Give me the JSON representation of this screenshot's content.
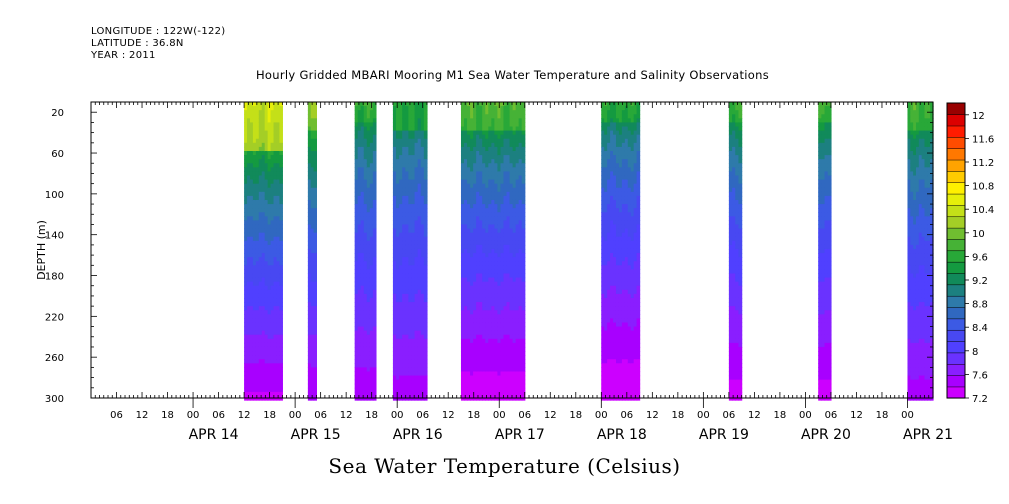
{
  "header": {
    "longitude": "LONGITUDE : 122W(-122)",
    "latitude": "LATITUDE : 36.8N",
    "year": "YEAR : 2011"
  },
  "chart_data": {
    "type": "heatmap",
    "title": "Hourly Gridded MBARI Mooring M1 Sea Water Temperature and Salinity Observations",
    "xlabel": "Sea Water Temperature (Celsius)",
    "ylabel": "DEPTH (m)",
    "ylim": [
      300,
      0
    ],
    "yticks": [
      20,
      60,
      100,
      140,
      180,
      220,
      260,
      300
    ],
    "x_start": "2011-04-13 00:00",
    "x_end": "2011-04-21 06:00",
    "hour_ticks": [
      "06",
      "12",
      "18",
      "00",
      "06",
      "12",
      "18",
      "00",
      "06",
      "12",
      "18",
      "00",
      "06",
      "12",
      "18",
      "00",
      "06",
      "12",
      "18",
      "00",
      "06",
      "12",
      "18",
      "00",
      "06",
      "12",
      "18",
      "00",
      "06",
      "12",
      "18",
      "00"
    ],
    "days": [
      "APR 14",
      "APR 15",
      "APR 16",
      "APR 17",
      "APR 18",
      "APR 19",
      "APR 20",
      "APR 21"
    ],
    "colorbar": {
      "levels": [
        7.2,
        7.4,
        7.6,
        7.8,
        8.0,
        8.2,
        8.4,
        8.6,
        8.8,
        9.0,
        9.2,
        9.4,
        9.6,
        9.8,
        10.0,
        10.2,
        10.4,
        10.6,
        10.8,
        11.0,
        11.2,
        11.4,
        11.6,
        11.8,
        12.0,
        12.2
      ],
      "labels": [
        "7.2",
        "7.6",
        "8",
        "8.4",
        "8.8",
        "9.2",
        "9.6",
        "10",
        "10.4",
        "10.8",
        "11.2",
        "11.6",
        "12"
      ],
      "colors": [
        "#cc00ff",
        "#a800ff",
        "#8a1eff",
        "#6a32ff",
        "#5040ff",
        "#4848f2",
        "#3c5ae4",
        "#3068c0",
        "#2e7aaa",
        "#1c8080",
        "#118a5a",
        "#149a40",
        "#28a838",
        "#46b236",
        "#70be30",
        "#a4ce26",
        "#c4e018",
        "#e6ef0a",
        "#fff000",
        "#ffcc00",
        "#ffa300",
        "#ff7800",
        "#ff4c00",
        "#ff1c00",
        "#dc0000",
        "#990000"
      ]
    },
    "segments": [
      {
        "start": "2011-04-14 12:00",
        "end": "2011-04-14 21:00",
        "surface_temp": 10.5,
        "top_mix_depth": 60,
        "max_warm_depth": 180,
        "bottom_temp": 7.35
      },
      {
        "start": "2011-04-15 03:00",
        "end": "2011-04-15 05:00",
        "surface_temp": 10.2,
        "top_mix_depth": 40,
        "max_warm_depth": 160,
        "bottom_temp": 7.4
      },
      {
        "start": "2011-04-15 14:00",
        "end": "2011-04-15 19:00",
        "surface_temp": 9.7,
        "top_mix_depth": 30,
        "max_warm_depth": 160,
        "bottom_temp": 7.45
      },
      {
        "start": "2011-04-15 23:00",
        "end": "2011-04-16 07:00",
        "surface_temp": 9.6,
        "top_mix_depth": 40,
        "max_warm_depth": 170,
        "bottom_temp": 7.5
      },
      {
        "start": "2011-04-16 15:00",
        "end": "2011-04-17 06:00",
        "surface_temp": 9.9,
        "top_mix_depth": 40,
        "max_warm_depth": 170,
        "bottom_temp": 7.25
      },
      {
        "start": "2011-04-17 23:59",
        "end": "2011-04-18 09:00",
        "surface_temp": 9.6,
        "top_mix_depth": 30,
        "max_warm_depth": 160,
        "bottom_temp": 7.2
      },
      {
        "start": "2011-04-19 06:00",
        "end": "2011-04-19 09:00",
        "surface_temp": 9.8,
        "top_mix_depth": 30,
        "max_warm_depth": 160,
        "bottom_temp": 7.3
      },
      {
        "start": "2011-04-20 03:00",
        "end": "2011-04-20 06:00",
        "surface_temp": 9.8,
        "top_mix_depth": 30,
        "max_warm_depth": 160,
        "bottom_temp": 7.3
      },
      {
        "start": "2011-04-21 00:00",
        "end": "2011-04-21 06:00",
        "surface_temp": 9.8,
        "top_mix_depth": 40,
        "max_warm_depth": 160,
        "bottom_temp": 7.5
      }
    ]
  }
}
